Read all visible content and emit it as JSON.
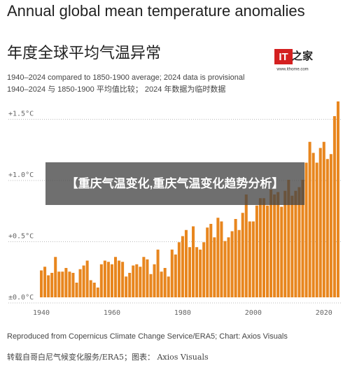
{
  "chart_data": {
    "type": "bar",
    "title": "Annual global mean temperature anomalies",
    "title_zh": "年度全球平均气温异常",
    "subtitle": "1940–2024 compared to 1850-1900 average; 2024 data is provisional",
    "subtitle_zh": "1940–2024 与 1850-1900 平均值比较； 2024 年数据为临时数据",
    "source": "Reproduced from Copernicus Climate Change Service/ERA5; Chart: Axios Visuals",
    "source_zh": "转载自哥白尼气候变化服务/ERA5；图表： Axios Visuals",
    "color": "#e8861e",
    "grid": true,
    "x": [
      1940,
      1941,
      1942,
      1943,
      1944,
      1945,
      1946,
      1947,
      1948,
      1949,
      1950,
      1951,
      1952,
      1953,
      1954,
      1955,
      1956,
      1957,
      1958,
      1959,
      1960,
      1961,
      1962,
      1963,
      1964,
      1965,
      1966,
      1967,
      1968,
      1969,
      1970,
      1971,
      1972,
      1973,
      1974,
      1975,
      1976,
      1977,
      1978,
      1979,
      1980,
      1981,
      1982,
      1983,
      1984,
      1985,
      1986,
      1987,
      1988,
      1989,
      1990,
      1991,
      1992,
      1993,
      1994,
      1995,
      1996,
      1997,
      1998,
      1999,
      2000,
      2001,
      2002,
      2003,
      2004,
      2005,
      2006,
      2007,
      2008,
      2009,
      2010,
      2011,
      2012,
      2013,
      2014,
      2015,
      2016,
      2017,
      2018,
      2019,
      2020,
      2021,
      2022,
      2023,
      2024
    ],
    "values": [
      0.22,
      0.25,
      0.18,
      0.2,
      0.33,
      0.21,
      0.21,
      0.24,
      0.21,
      0.2,
      0.12,
      0.23,
      0.26,
      0.3,
      0.14,
      0.12,
      0.08,
      0.27,
      0.3,
      0.29,
      0.27,
      0.33,
      0.3,
      0.29,
      0.17,
      0.2,
      0.26,
      0.27,
      0.25,
      0.33,
      0.31,
      0.19,
      0.27,
      0.39,
      0.21,
      0.24,
      0.17,
      0.39,
      0.35,
      0.45,
      0.5,
      0.55,
      0.41,
      0.58,
      0.41,
      0.39,
      0.45,
      0.57,
      0.6,
      0.49,
      0.65,
      0.62,
      0.46,
      0.49,
      0.54,
      0.64,
      0.55,
      0.69,
      0.84,
      0.62,
      0.62,
      0.75,
      0.81,
      0.81,
      0.75,
      0.88,
      0.84,
      0.86,
      0.74,
      0.87,
      0.96,
      0.83,
      0.87,
      0.9,
      0.96,
      1.1,
      1.27,
      1.18,
      1.1,
      1.22,
      1.27,
      1.13,
      1.17,
      1.48,
      1.6
    ],
    "xlim": [
      1939.2,
      2025
    ],
    "xticks": [
      1940,
      1960,
      1980,
      2000,
      2020
    ],
    "ylim": [
      0,
      1.6
    ],
    "yticks": [
      {
        "value": 0,
        "label": "±0.0°C"
      },
      {
        "value": 0.5,
        "label": "+0.5°C"
      },
      {
        "value": 1.0,
        "label": "+1.0°C"
      },
      {
        "value": 1.5,
        "label": "+1.5°C"
      }
    ]
  },
  "logo": {
    "brand": "IT",
    "brand_zh": "之家",
    "url": "www.ithome.com"
  },
  "overlay": {
    "text": "【重庆气温变化,重庆气温变化趋势分析】"
  }
}
